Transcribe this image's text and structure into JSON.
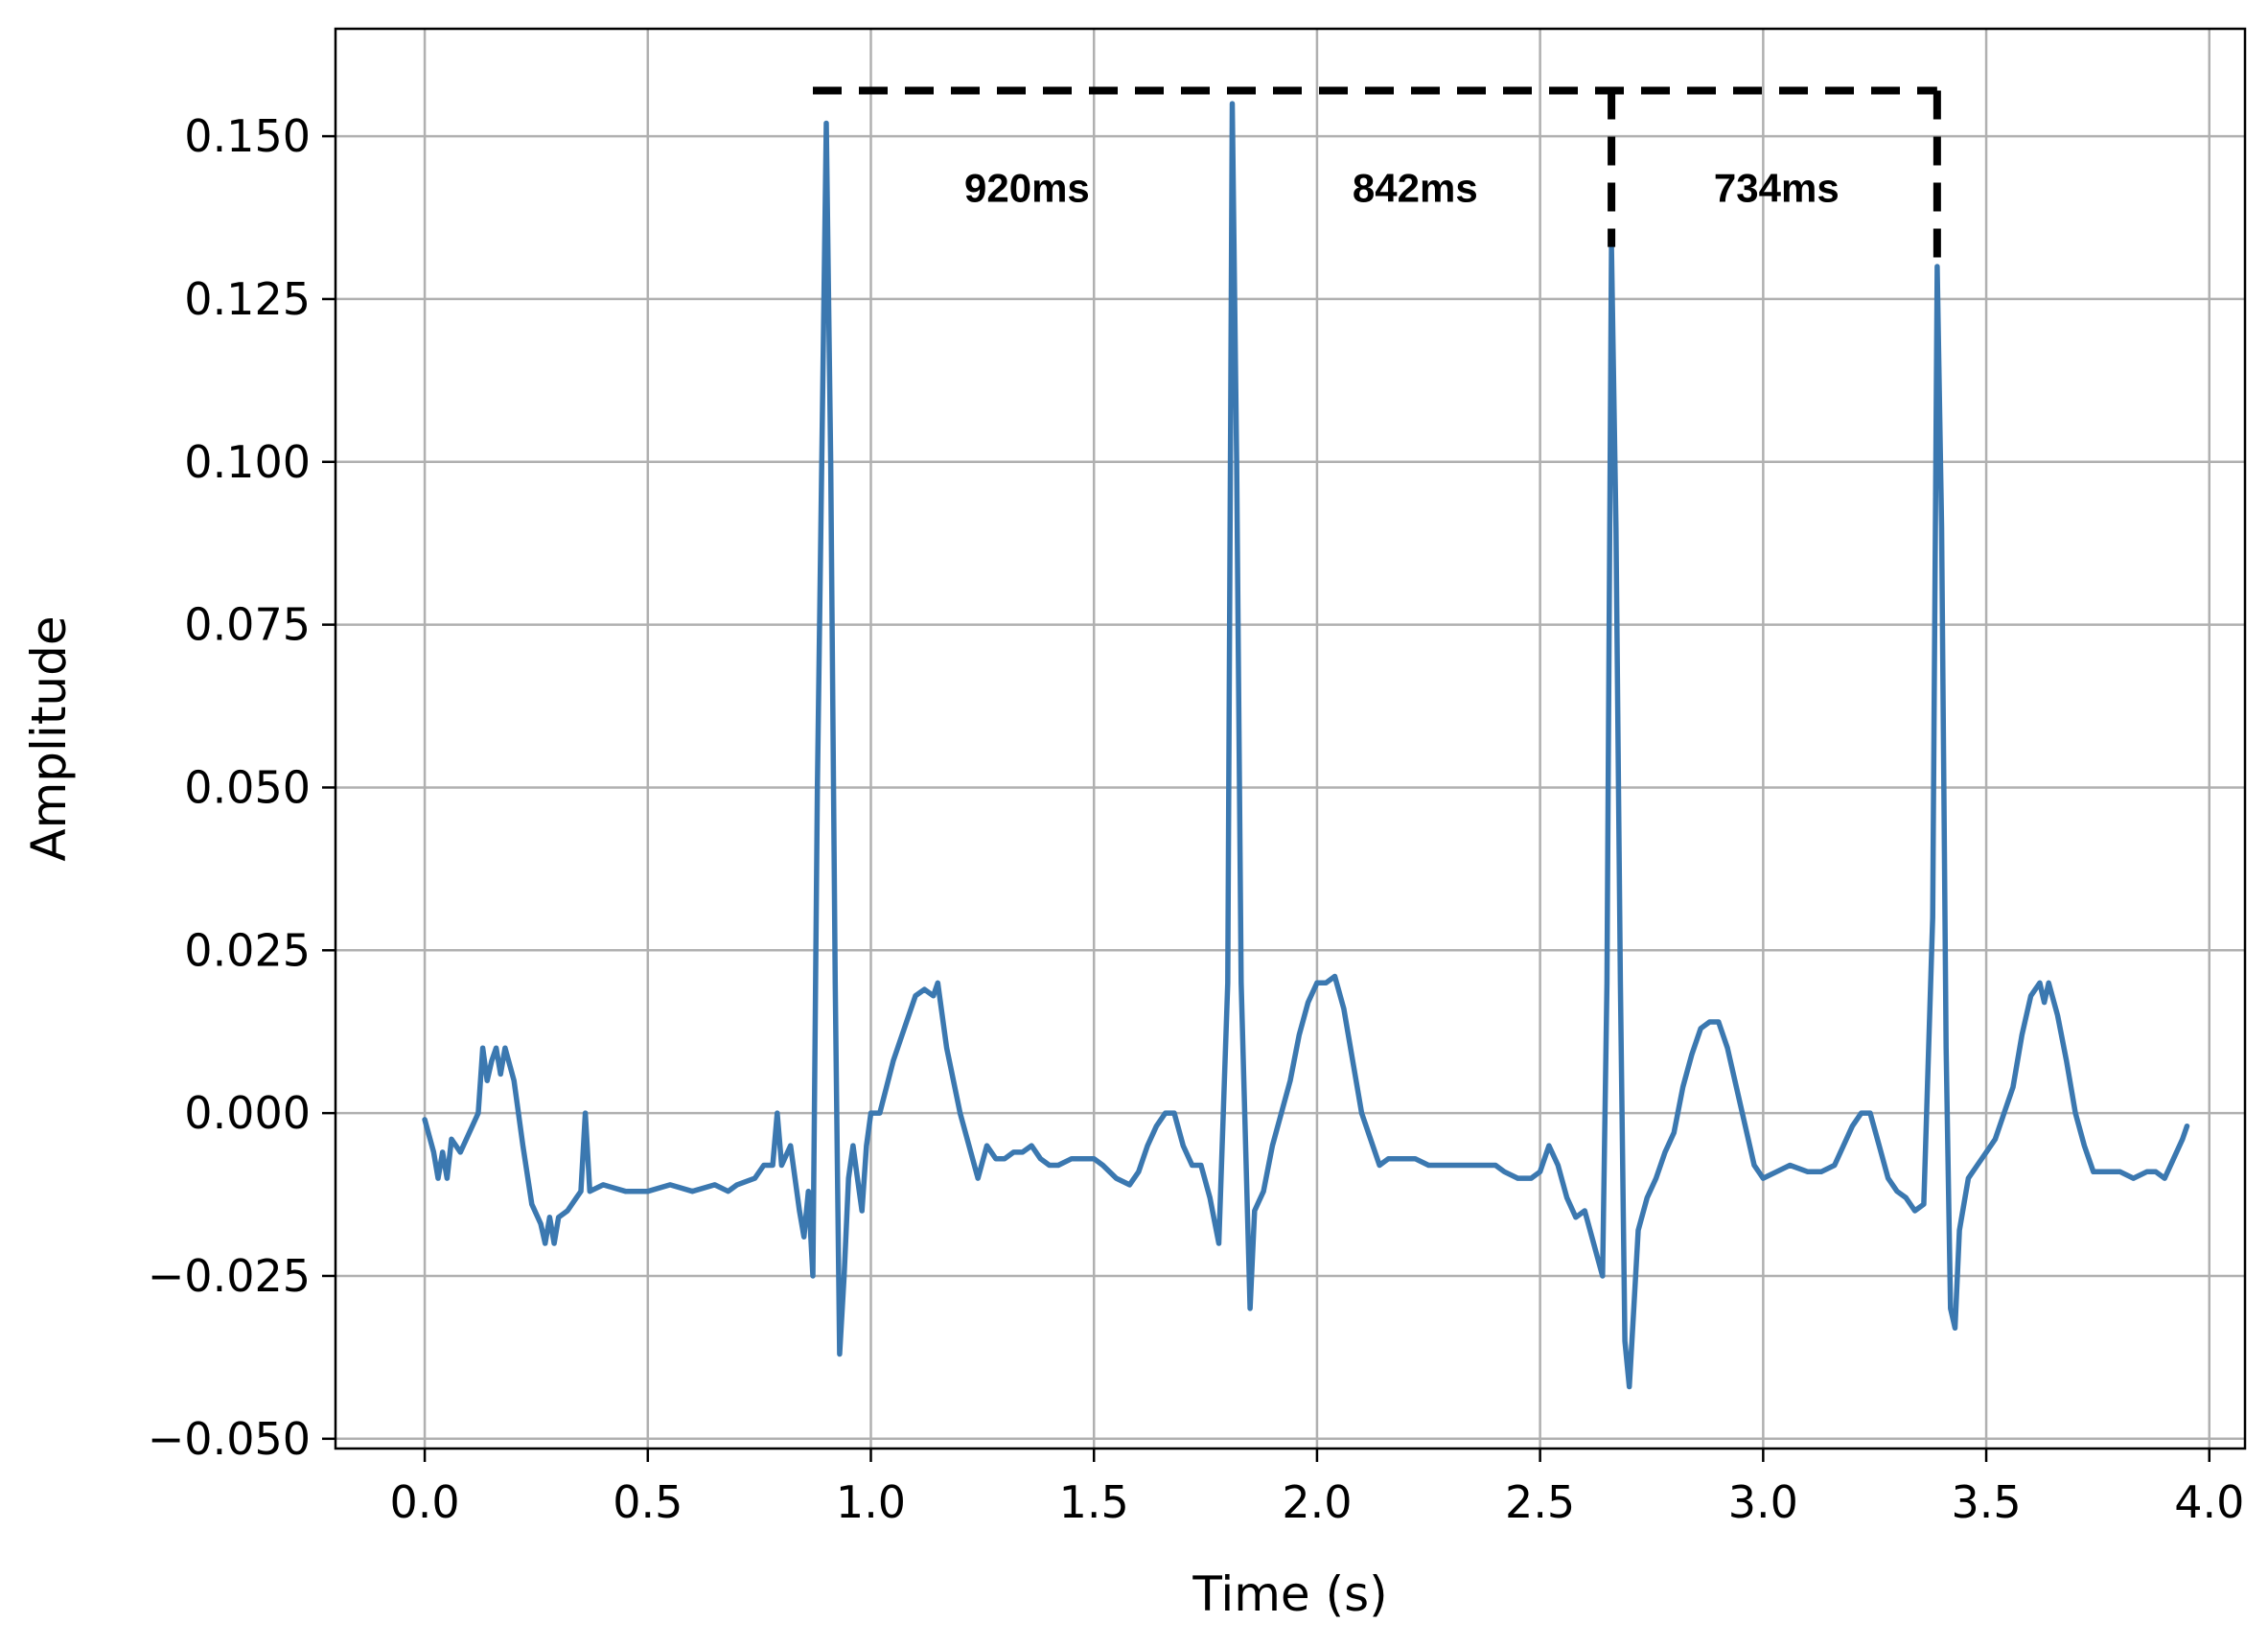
{
  "chart_data": {
    "type": "line",
    "title": "",
    "xlabel": "Time (s)",
    "ylabel": "Amplitude",
    "xlim": [
      -0.2,
      4.08
    ],
    "ylim": [
      -0.0515,
      0.1665
    ],
    "xticks": [
      0.0,
      0.5,
      1.0,
      1.5,
      2.0,
      2.5,
      3.0,
      3.5,
      4.0
    ],
    "xtick_labels": [
      "0.0",
      "0.5",
      "1.0",
      "1.5",
      "2.0",
      "2.5",
      "3.0",
      "3.5",
      "4.0"
    ],
    "yticks": [
      -0.05,
      -0.025,
      0.0,
      0.025,
      0.05,
      0.075,
      0.1,
      0.125,
      0.15
    ],
    "ytick_labels": [
      "−0.050",
      "−0.025",
      "0.000",
      "0.025",
      "0.050",
      "0.075",
      "0.100",
      "0.125",
      "0.150"
    ],
    "grid": true,
    "legend": "none",
    "line_color": "#3b78b0",
    "series": [
      {
        "points": [
          [
            0.0,
            -0.001
          ],
          [
            0.02,
            -0.006
          ],
          [
            0.03,
            -0.01
          ],
          [
            0.04,
            -0.006
          ],
          [
            0.05,
            -0.01
          ],
          [
            0.06,
            -0.004
          ],
          [
            0.08,
            -0.006
          ],
          [
            0.1,
            -0.003
          ],
          [
            0.12,
            0.0
          ],
          [
            0.13,
            0.01
          ],
          [
            0.14,
            0.005
          ],
          [
            0.15,
            0.008
          ],
          [
            0.16,
            0.01
          ],
          [
            0.17,
            0.006
          ],
          [
            0.18,
            0.01
          ],
          [
            0.2,
            0.005
          ],
          [
            0.22,
            -0.005
          ],
          [
            0.24,
            -0.014
          ],
          [
            0.26,
            -0.017
          ],
          [
            0.27,
            -0.02
          ],
          [
            0.28,
            -0.016
          ],
          [
            0.29,
            -0.02
          ],
          [
            0.3,
            -0.016
          ],
          [
            0.32,
            -0.015
          ],
          [
            0.34,
            -0.013
          ],
          [
            0.35,
            -0.012
          ],
          [
            0.36,
            0.0
          ],
          [
            0.37,
            -0.012
          ],
          [
            0.4,
            -0.011
          ],
          [
            0.45,
            -0.012
          ],
          [
            0.5,
            -0.012
          ],
          [
            0.55,
            -0.011
          ],
          [
            0.6,
            -0.012
          ],
          [
            0.65,
            -0.011
          ],
          [
            0.68,
            -0.012
          ],
          [
            0.7,
            -0.011
          ],
          [
            0.74,
            -0.01
          ],
          [
            0.76,
            -0.008
          ],
          [
            0.78,
            -0.008
          ],
          [
            0.79,
            0.0
          ],
          [
            0.8,
            -0.008
          ],
          [
            0.82,
            -0.005
          ],
          [
            0.84,
            -0.015
          ],
          [
            0.85,
            -0.019
          ],
          [
            0.86,
            -0.012
          ],
          [
            0.87,
            -0.025
          ],
          [
            0.88,
            0.05
          ],
          [
            0.9,
            0.152
          ],
          [
            0.91,
            0.1
          ],
          [
            0.92,
            0.02
          ],
          [
            0.93,
            -0.037
          ],
          [
            0.94,
            -0.025
          ],
          [
            0.95,
            -0.01
          ],
          [
            0.96,
            -0.005
          ],
          [
            0.97,
            -0.01
          ],
          [
            0.98,
            -0.015
          ],
          [
            0.99,
            -0.005
          ],
          [
            1.0,
            0.0
          ],
          [
            1.02,
            0.0
          ],
          [
            1.05,
            0.008
          ],
          [
            1.08,
            0.014
          ],
          [
            1.1,
            0.018
          ],
          [
            1.12,
            0.019
          ],
          [
            1.14,
            0.018
          ],
          [
            1.15,
            0.02
          ],
          [
            1.17,
            0.01
          ],
          [
            1.2,
            0.0
          ],
          [
            1.22,
            -0.005
          ],
          [
            1.24,
            -0.01
          ],
          [
            1.26,
            -0.005
          ],
          [
            1.28,
            -0.007
          ],
          [
            1.3,
            -0.007
          ],
          [
            1.32,
            -0.006
          ],
          [
            1.34,
            -0.006
          ],
          [
            1.36,
            -0.005
          ],
          [
            1.38,
            -0.007
          ],
          [
            1.4,
            -0.008
          ],
          [
            1.42,
            -0.008
          ],
          [
            1.45,
            -0.007
          ],
          [
            1.48,
            -0.007
          ],
          [
            1.5,
            -0.007
          ],
          [
            1.52,
            -0.008
          ],
          [
            1.55,
            -0.01
          ],
          [
            1.58,
            -0.011
          ],
          [
            1.6,
            -0.009
          ],
          [
            1.62,
            -0.005
          ],
          [
            1.64,
            -0.002
          ],
          [
            1.66,
            0.0
          ],
          [
            1.68,
            0.0
          ],
          [
            1.7,
            -0.005
          ],
          [
            1.72,
            -0.008
          ],
          [
            1.74,
            -0.008
          ],
          [
            1.76,
            -0.013
          ],
          [
            1.78,
            -0.02
          ],
          [
            1.8,
            0.02
          ],
          [
            1.81,
            0.155
          ],
          [
            1.82,
            0.1
          ],
          [
            1.83,
            0.02
          ],
          [
            1.85,
            -0.03
          ],
          [
            1.86,
            -0.015
          ],
          [
            1.88,
            -0.012
          ],
          [
            1.9,
            -0.005
          ],
          [
            1.92,
            0.0
          ],
          [
            1.94,
            0.005
          ],
          [
            1.96,
            0.012
          ],
          [
            1.98,
            0.017
          ],
          [
            2.0,
            0.02
          ],
          [
            2.02,
            0.02
          ],
          [
            2.04,
            0.021
          ],
          [
            2.06,
            0.016
          ],
          [
            2.08,
            0.008
          ],
          [
            2.1,
            0.0
          ],
          [
            2.12,
            -0.004
          ],
          [
            2.14,
            -0.008
          ],
          [
            2.16,
            -0.007
          ],
          [
            2.18,
            -0.007
          ],
          [
            2.2,
            -0.007
          ],
          [
            2.22,
            -0.007
          ],
          [
            2.25,
            -0.008
          ],
          [
            2.28,
            -0.008
          ],
          [
            2.3,
            -0.008
          ],
          [
            2.33,
            -0.008
          ],
          [
            2.36,
            -0.008
          ],
          [
            2.4,
            -0.008
          ],
          [
            2.42,
            -0.009
          ],
          [
            2.45,
            -0.01
          ],
          [
            2.48,
            -0.01
          ],
          [
            2.5,
            -0.009
          ],
          [
            2.52,
            -0.005
          ],
          [
            2.54,
            -0.008
          ],
          [
            2.56,
            -0.013
          ],
          [
            2.58,
            -0.016
          ],
          [
            2.6,
            -0.015
          ],
          [
            2.62,
            -0.02
          ],
          [
            2.64,
            -0.025
          ],
          [
            2.65,
            0.02
          ],
          [
            2.66,
            0.133
          ],
          [
            2.67,
            0.09
          ],
          [
            2.68,
            0.02
          ],
          [
            2.69,
            -0.035
          ],
          [
            2.7,
            -0.042
          ],
          [
            2.71,
            -0.03
          ],
          [
            2.72,
            -0.018
          ],
          [
            2.74,
            -0.013
          ],
          [
            2.76,
            -0.01
          ],
          [
            2.78,
            -0.006
          ],
          [
            2.8,
            -0.003
          ],
          [
            2.82,
            0.004
          ],
          [
            2.84,
            0.009
          ],
          [
            2.86,
            0.013
          ],
          [
            2.88,
            0.014
          ],
          [
            2.9,
            0.014
          ],
          [
            2.92,
            0.01
          ],
          [
            2.94,
            0.004
          ],
          [
            2.96,
            -0.002
          ],
          [
            2.98,
            -0.008
          ],
          [
            3.0,
            -0.01
          ],
          [
            3.03,
            -0.009
          ],
          [
            3.06,
            -0.008
          ],
          [
            3.1,
            -0.009
          ],
          [
            3.13,
            -0.009
          ],
          [
            3.16,
            -0.008
          ],
          [
            3.18,
            -0.005
          ],
          [
            3.2,
            -0.002
          ],
          [
            3.22,
            0.0
          ],
          [
            3.24,
            0.0
          ],
          [
            3.26,
            -0.005
          ],
          [
            3.28,
            -0.01
          ],
          [
            3.3,
            -0.012
          ],
          [
            3.32,
            -0.013
          ],
          [
            3.34,
            -0.015
          ],
          [
            3.36,
            -0.014
          ],
          [
            3.38,
            0.03
          ],
          [
            3.39,
            0.13
          ],
          [
            3.4,
            0.09
          ],
          [
            3.41,
            0.01
          ],
          [
            3.42,
            -0.03
          ],
          [
            3.43,
            -0.033
          ],
          [
            3.44,
            -0.018
          ],
          [
            3.46,
            -0.01
          ],
          [
            3.48,
            -0.008
          ],
          [
            3.5,
            -0.006
          ],
          [
            3.52,
            -0.004
          ],
          [
            3.54,
            0.0
          ],
          [
            3.56,
            0.004
          ],
          [
            3.58,
            0.012
          ],
          [
            3.6,
            0.018
          ],
          [
            3.62,
            0.02
          ],
          [
            3.63,
            0.017
          ],
          [
            3.64,
            0.02
          ],
          [
            3.66,
            0.015
          ],
          [
            3.68,
            0.008
          ],
          [
            3.7,
            0.0
          ],
          [
            3.72,
            -0.005
          ],
          [
            3.74,
            -0.009
          ],
          [
            3.76,
            -0.009
          ],
          [
            3.78,
            -0.009
          ],
          [
            3.8,
            -0.009
          ],
          [
            3.83,
            -0.01
          ],
          [
            3.86,
            -0.009
          ],
          [
            3.88,
            -0.009
          ],
          [
            3.9,
            -0.01
          ],
          [
            3.92,
            -0.007
          ],
          [
            3.94,
            -0.004
          ],
          [
            3.95,
            -0.002
          ]
        ]
      }
    ],
    "annotations": [
      {
        "label": "920ms",
        "x": 1.35,
        "y": 0.142
      },
      {
        "label": "842ms",
        "x": 2.22,
        "y": 0.142
      },
      {
        "label": "734ms",
        "x": 3.03,
        "y": 0.142
      }
    ],
    "bracket_lines": [
      {
        "from": [
          0.87,
          0.157
        ],
        "to": [
          3.39,
          0.157
        ]
      },
      {
        "from": [
          2.66,
          0.157
        ],
        "to": [
          2.66,
          0.133
        ]
      },
      {
        "from": [
          3.39,
          0.157
        ],
        "to": [
          3.39,
          0.13
        ]
      }
    ]
  }
}
